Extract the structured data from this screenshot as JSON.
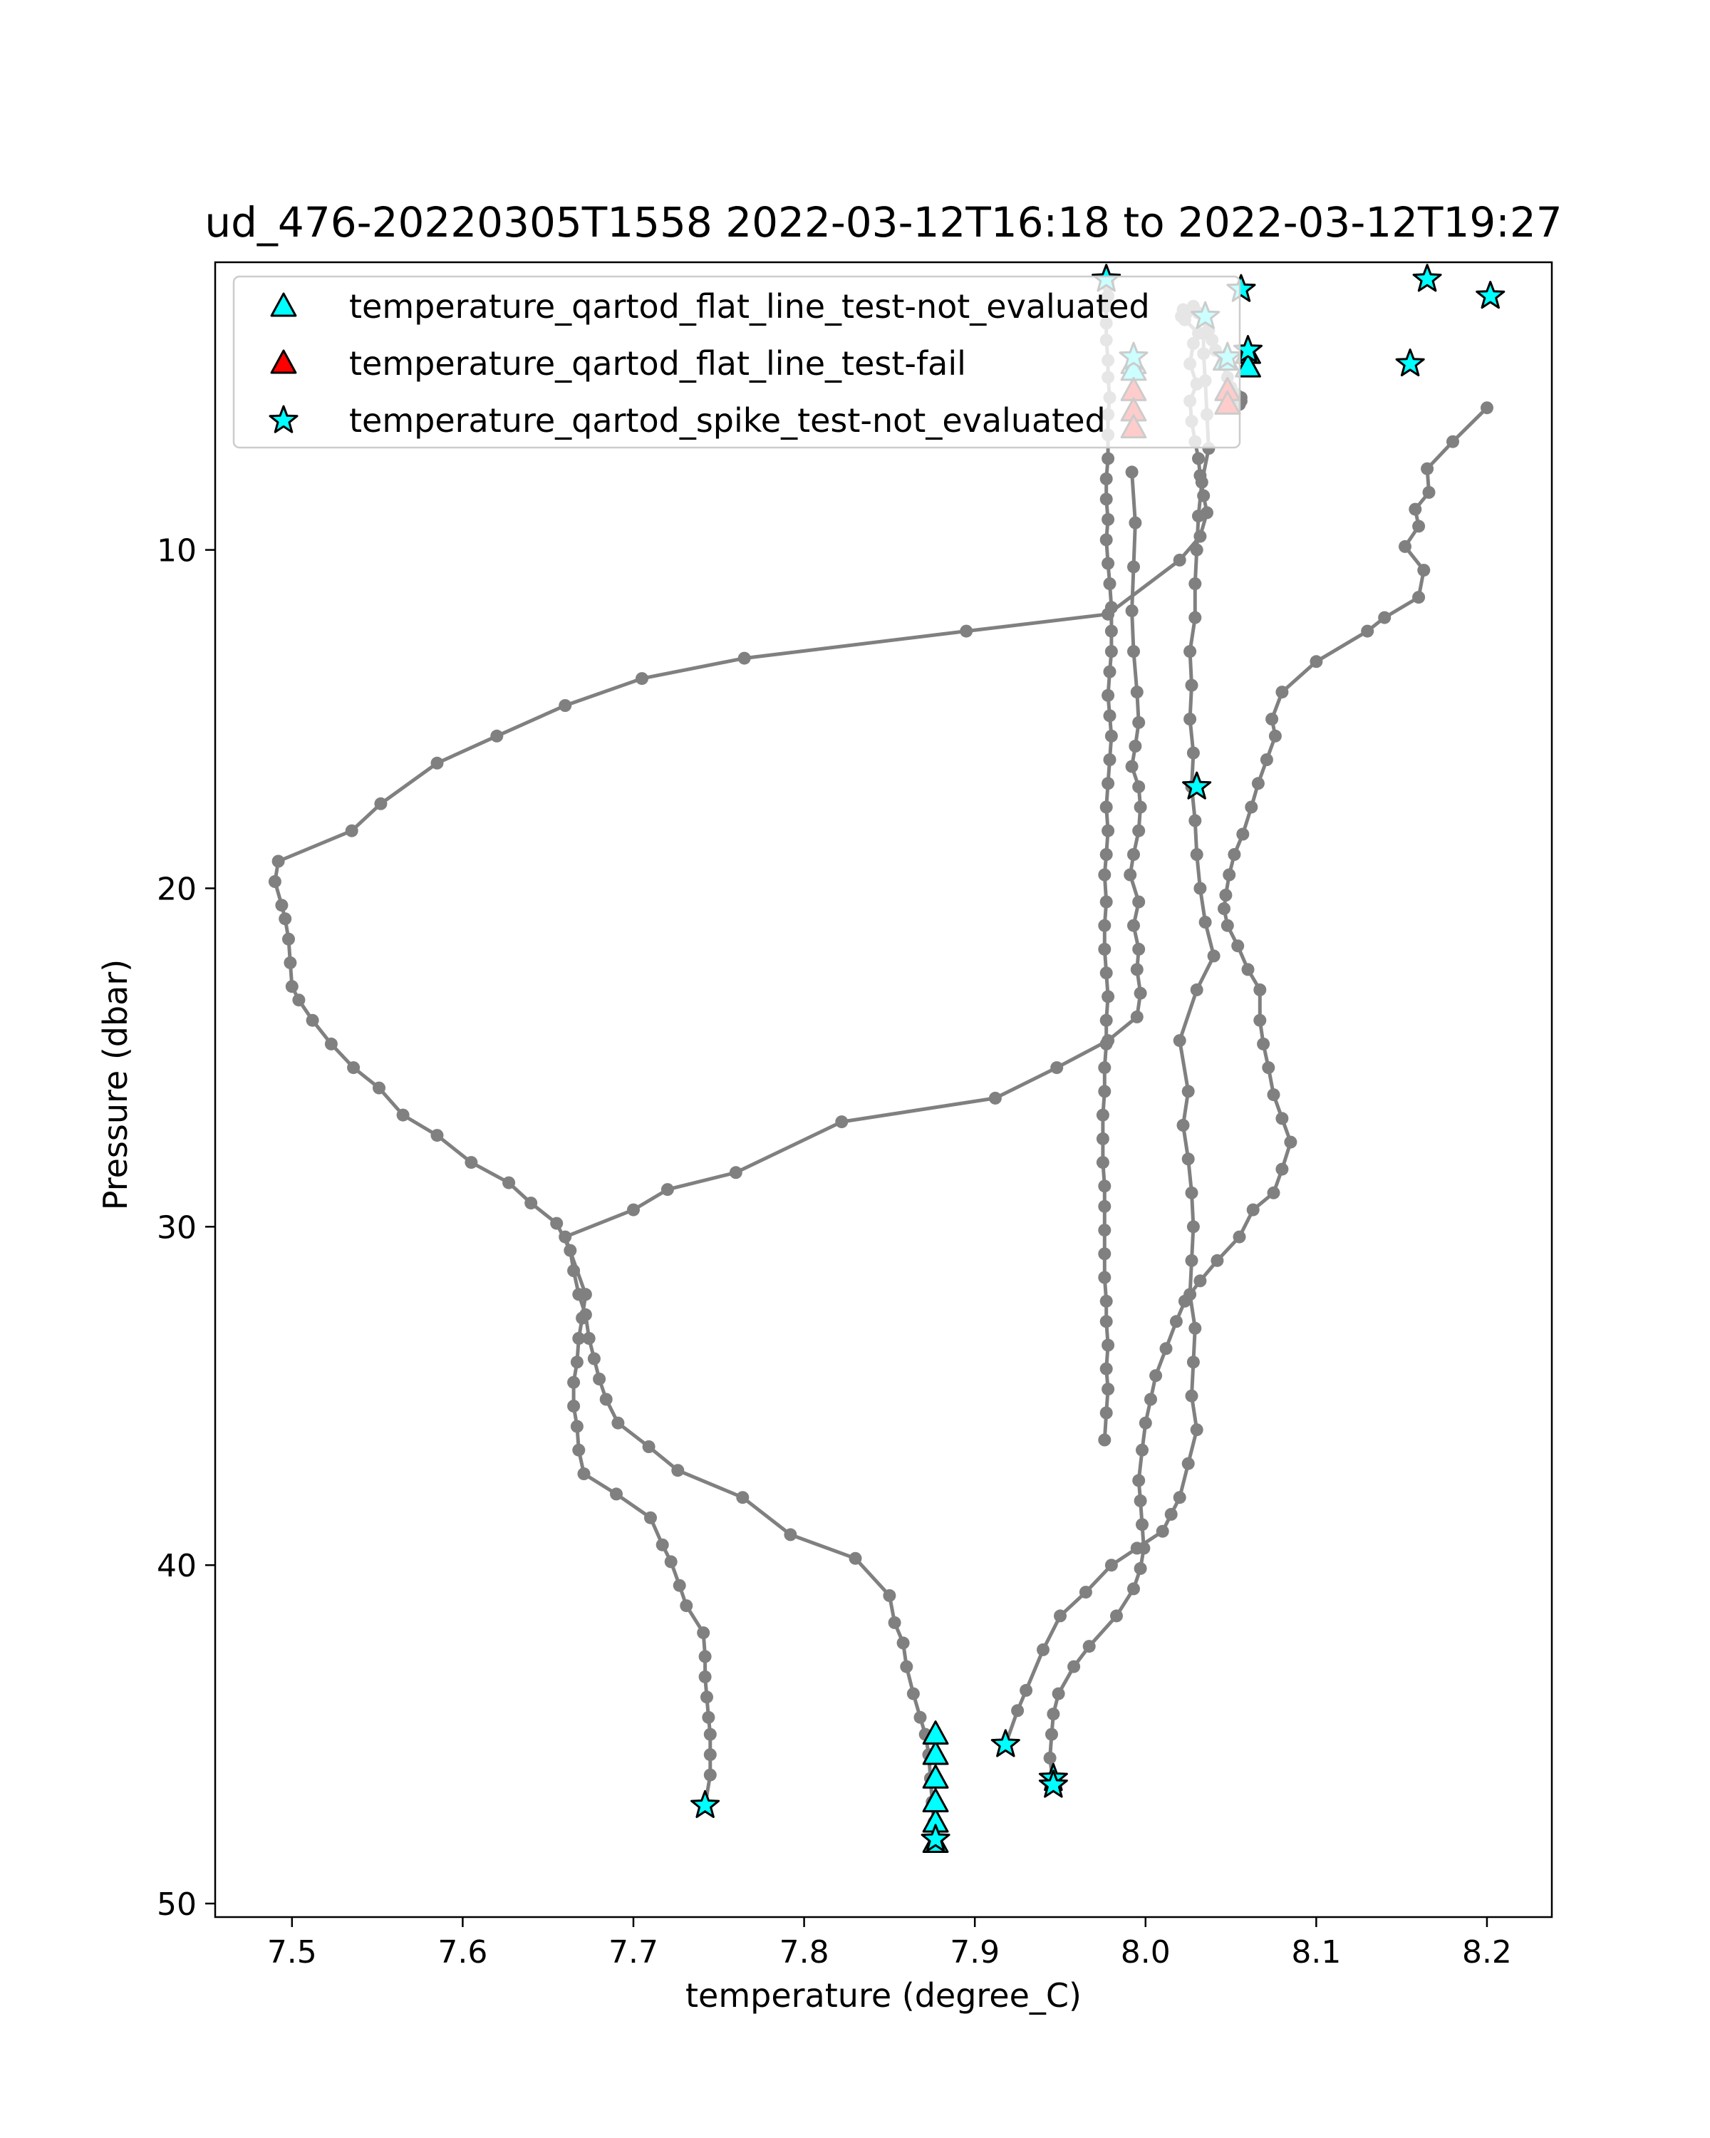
{
  "chart_data": {
    "type": "scatter",
    "title": "ud_476-20220305T1558 2022-03-12T16:18 to 2022-03-12T19:27",
    "xlabel": "temperature (degree_C)",
    "ylabel": "Pressure (dbar)",
    "xlim": [
      7.455,
      8.238
    ],
    "ylim": [
      50.4,
      1.5
    ],
    "y_inverted": true,
    "grid": false,
    "legend_position": "top-left",
    "x_ticks": [
      {
        "value": 7.5,
        "label": "7.5"
      },
      {
        "value": 7.6,
        "label": "7.6"
      },
      {
        "value": 7.7,
        "label": "7.7"
      },
      {
        "value": 7.8,
        "label": "7.8"
      },
      {
        "value": 7.9,
        "label": "7.9"
      },
      {
        "value": 8.0,
        "label": "8.0"
      },
      {
        "value": 8.1,
        "label": "8.1"
      },
      {
        "value": 8.2,
        "label": "8.2"
      }
    ],
    "y_ticks": [
      {
        "value": 10,
        "label": "10"
      },
      {
        "value": 20,
        "label": "20"
      },
      {
        "value": 30,
        "label": "30"
      },
      {
        "value": 40,
        "label": "40"
      },
      {
        "value": 50,
        "label": "50"
      }
    ],
    "line_color": "#808080",
    "profiles": [
      {
        "x": [
          7.742,
          7.745,
          7.745,
          7.745,
          7.744,
          7.743,
          7.742,
          7.742,
          7.741,
          7.731,
          7.727,
          7.722,
          7.717,
          7.71,
          7.69,
          7.671,
          7.668,
          7.667,
          7.665,
          7.665,
          7.667,
          7.668,
          7.67,
          7.672,
          7.66,
          7.7,
          7.72,
          7.76,
          7.822,
          7.912,
          7.948,
          7.978,
          7.995,
          7.997,
          7.995,
          7.996,
          7.993,
          7.996,
          7.991,
          7.993,
          7.996,
          7.997,
          7.996,
          7.992,
          7.994,
          7.996,
          7.995,
          7.993,
          7.992,
          7.993,
          7.994,
          7.992
        ],
        "y": [
          47.1,
          46.2,
          45.6,
          45.0,
          44.5,
          43.9,
          43.3,
          42.7,
          42.0,
          41.2,
          40.6,
          39.9,
          39.4,
          38.6,
          37.9,
          37.3,
          36.6,
          35.9,
          35.3,
          34.6,
          34.0,
          33.3,
          32.7,
          32.0,
          30.3,
          29.5,
          28.9,
          28.4,
          26.9,
          26.2,
          25.3,
          24.5,
          23.8,
          23.1,
          22.4,
          21.8,
          21.1,
          20.4,
          19.6,
          19.0,
          18.3,
          17.6,
          17.0,
          16.4,
          15.8,
          15.1,
          14.2,
          13.0,
          11.8,
          10.5,
          9.2,
          7.7
        ]
      },
      {
        "x": [
          7.877,
          7.876,
          7.875,
          7.874,
          7.873,
          7.871,
          7.868,
          7.864,
          7.86,
          7.858,
          7.853,
          7.85,
          7.83,
          7.792,
          7.764,
          7.726,
          7.709,
          7.691,
          7.684,
          7.68,
          7.677,
          7.674,
          7.672,
          7.668,
          7.665,
          7.663,
          7.655,
          7.64,
          7.627,
          7.605,
          7.585,
          7.565,
          7.551,
          7.536,
          7.523,
          7.512,
          7.504,
          7.5,
          7.499,
          7.498,
          7.496,
          7.494,
          7.49,
          7.492,
          7.535,
          7.552,
          7.585,
          7.62,
          7.66,
          7.705,
          7.765,
          7.895,
          7.978,
          8.02,
          8.032,
          8.036,
          8.034,
          8.032,
          8.031,
          8.029,
          8.027,
          8.026,
          8.03,
          8.026,
          8.028,
          8.031,
          8.023,
          8.021,
          8.024,
          8.022,
          8.028,
          8.031,
          8.035,
          8.037,
          8.039,
          8.041,
          8.045,
          8.048,
          8.05,
          8.053,
          8.056,
          8.056,
          8.055
        ],
        "y": [
          48.2,
          47.6,
          47.0,
          46.3,
          45.6,
          45.0,
          44.5,
          43.8,
          43.0,
          42.3,
          41.7,
          40.9,
          39.8,
          39.1,
          38.0,
          37.2,
          36.5,
          35.8,
          35.1,
          34.5,
          33.9,
          33.3,
          32.6,
          32.0,
          31.3,
          30.7,
          29.9,
          29.3,
          28.7,
          28.1,
          27.3,
          26.7,
          25.9,
          25.3,
          24.6,
          23.9,
          23.3,
          22.9,
          22.2,
          21.5,
          20.9,
          20.5,
          19.8,
          19.2,
          18.3,
          17.5,
          16.3,
          15.5,
          14.6,
          13.8,
          13.2,
          12.4,
          11.9,
          10.3,
          9.6,
          8.9,
          8.4,
          7.8,
          7.3,
          6.8,
          6.2,
          5.6,
          5.1,
          4.5,
          3.9,
          3.6,
          3.2,
          3.1,
          3.0,
          2.9,
          2.8,
          3.0,
          3.2,
          3.5,
          3.8,
          4.1,
          4.5,
          4.9,
          5.2,
          5.4,
          5.5,
          5.6,
          5.7
        ]
      },
      {
        "x": [
          7.918,
          7.925,
          7.93,
          7.94,
          7.95,
          7.965,
          7.98,
          7.995,
          8.01,
          8.015,
          8.02,
          8.025,
          8.03,
          8.027,
          8.028,
          8.029,
          8.026,
          8.027,
          8.028,
          8.027,
          8.025,
          8.022,
          8.025,
          8.02,
          8.03,
          8.04,
          8.035,
          8.032,
          8.03,
          8.029,
          8.027,
          8.028,
          8.026,
          8.027,
          8.026,
          8.029,
          8.029,
          8.03,
          8.031,
          8.033,
          8.037,
          8.036,
          8.035,
          8.034,
          8.034
        ],
        "y": [
          45.3,
          44.3,
          43.7,
          42.5,
          41.5,
          40.8,
          40.0,
          39.5,
          39.0,
          38.5,
          38.0,
          37.0,
          36.0,
          35.0,
          34.0,
          33.0,
          32.0,
          31.0,
          30.0,
          29.0,
          28.0,
          27.0,
          26.0,
          24.5,
          23.0,
          22.0,
          21.0,
          20.0,
          19.0,
          18.0,
          17.0,
          16.0,
          15.0,
          14.0,
          13.0,
          12.0,
          11.0,
          10.0,
          9.0,
          8.0,
          7.0,
          6.0,
          5.0,
          4.2,
          3.6
        ]
      },
      {
        "x": [
          7.946,
          7.944,
          7.945,
          7.946,
          7.949,
          7.958,
          7.967,
          7.983,
          7.993,
          7.997,
          7.999,
          7.998,
          7.997,
          7.996,
          7.998,
          8.0,
          8.003,
          8.006,
          8.012,
          8.018,
          8.023,
          8.032,
          8.042,
          8.055,
          8.063,
          8.075,
          8.08,
          8.085,
          8.08,
          8.075,
          8.072,
          8.069,
          8.067,
          8.067,
          8.06,
          8.054,
          8.048,
          8.046,
          8.047,
          8.049,
          8.052,
          8.057,
          8.062,
          8.066,
          8.071,
          8.076,
          8.074,
          8.08,
          8.1,
          8.13,
          8.14,
          8.16,
          8.163,
          8.152,
          8.16,
          8.158,
          8.166,
          8.165,
          8.18,
          8.2
        ],
        "y": [
          46.5,
          45.7,
          45.0,
          44.4,
          43.8,
          43.0,
          42.4,
          41.5,
          40.7,
          40.1,
          39.5,
          38.8,
          38.1,
          37.5,
          36.6,
          35.8,
          35.1,
          34.4,
          33.6,
          32.8,
          32.2,
          31.6,
          31.0,
          30.3,
          29.5,
          29.0,
          28.3,
          27.5,
          26.8,
          26.1,
          25.3,
          24.6,
          23.9,
          23.0,
          22.4,
          21.7,
          21.1,
          20.6,
          20.2,
          19.6,
          19.0,
          18.4,
          17.6,
          16.9,
          16.2,
          15.5,
          15.0,
          14.2,
          13.3,
          12.4,
          12.0,
          11.4,
          10.6,
          9.9,
          9.3,
          8.8,
          8.3,
          7.6,
          6.8,
          5.8
        ]
      },
      {
        "x": [
          7.976,
          7.977,
          7.978,
          7.977,
          7.978,
          7.977,
          7.977,
          7.976,
          7.976,
          7.976,
          7.976,
          7.976,
          7.975,
          7.975,
          7.975,
          7.976,
          7.976,
          7.977,
          7.977,
          7.978,
          7.977,
          7.976,
          7.976,
          7.977,
          7.976,
          7.977,
          7.978,
          7.977,
          7.978,
          7.979,
          7.98,
          7.979,
          7.978,
          7.979,
          7.98,
          7.98,
          7.98,
          7.979,
          7.978,
          7.977,
          7.978,
          7.977,
          7.977,
          7.978,
          7.978,
          7.978,
          7.979,
          7.978,
          7.978,
          7.977,
          7.977,
          7.977,
          7.978,
          7.978,
          7.978,
          7.978
        ],
        "y": [
          36.3,
          35.5,
          34.8,
          34.2,
          33.5,
          32.8,
          32.2,
          31.5,
          30.8,
          30.1,
          29.4,
          28.8,
          28.1,
          27.4,
          26.7,
          26.0,
          25.3,
          24.6,
          23.9,
          23.2,
          22.5,
          21.8,
          21.1,
          20.4,
          19.6,
          19.0,
          18.3,
          17.6,
          16.9,
          16.2,
          15.5,
          14.9,
          14.3,
          13.6,
          13.0,
          12.4,
          11.7,
          11.0,
          10.4,
          9.7,
          9.1,
          8.5,
          7.9,
          7.3,
          6.6,
          6.0,
          5.5,
          4.9,
          4.4,
          3.8,
          3.3,
          2.8,
          2.5,
          2.2,
          2.1,
          2.0
        ]
      }
    ],
    "scatter_series": [
      {
        "name": "temperature_qartod_flat_line_test-not_evaluated",
        "marker": "triangle",
        "color": "#00ffff",
        "x": [
          7.877,
          7.877,
          7.877,
          7.877,
          7.877,
          7.877,
          8.047,
          8.06,
          8.06,
          7.993,
          7.993
        ],
        "y": [
          48.2,
          47.6,
          47.0,
          46.3,
          45.6,
          45.0,
          4.4,
          4.2,
          4.6,
          4.5,
          4.7
        ]
      },
      {
        "name": "temperature_qartod_flat_line_test-fail",
        "marker": "triangle",
        "color": "#ff0000",
        "x": [
          7.993,
          7.993,
          7.993,
          8.048,
          8.048
        ],
        "y": [
          5.3,
          5.9,
          6.4,
          5.3,
          5.7
        ]
      },
      {
        "name": "temperature_qartod_spike_test-not_evaluated",
        "marker": "star",
        "color": "#00ffff",
        "x": [
          7.977,
          8.056,
          8.035,
          7.993,
          8.048,
          8.06,
          8.165,
          8.202,
          8.155,
          8.03,
          7.742,
          7.877,
          7.918,
          7.946,
          7.946
        ],
        "y": [
          2.0,
          2.3,
          3.1,
          4.3,
          4.3,
          4.1,
          2.0,
          2.5,
          4.5,
          17.0,
          47.1,
          48.1,
          45.3,
          46.3,
          46.5
        ]
      }
    ]
  }
}
